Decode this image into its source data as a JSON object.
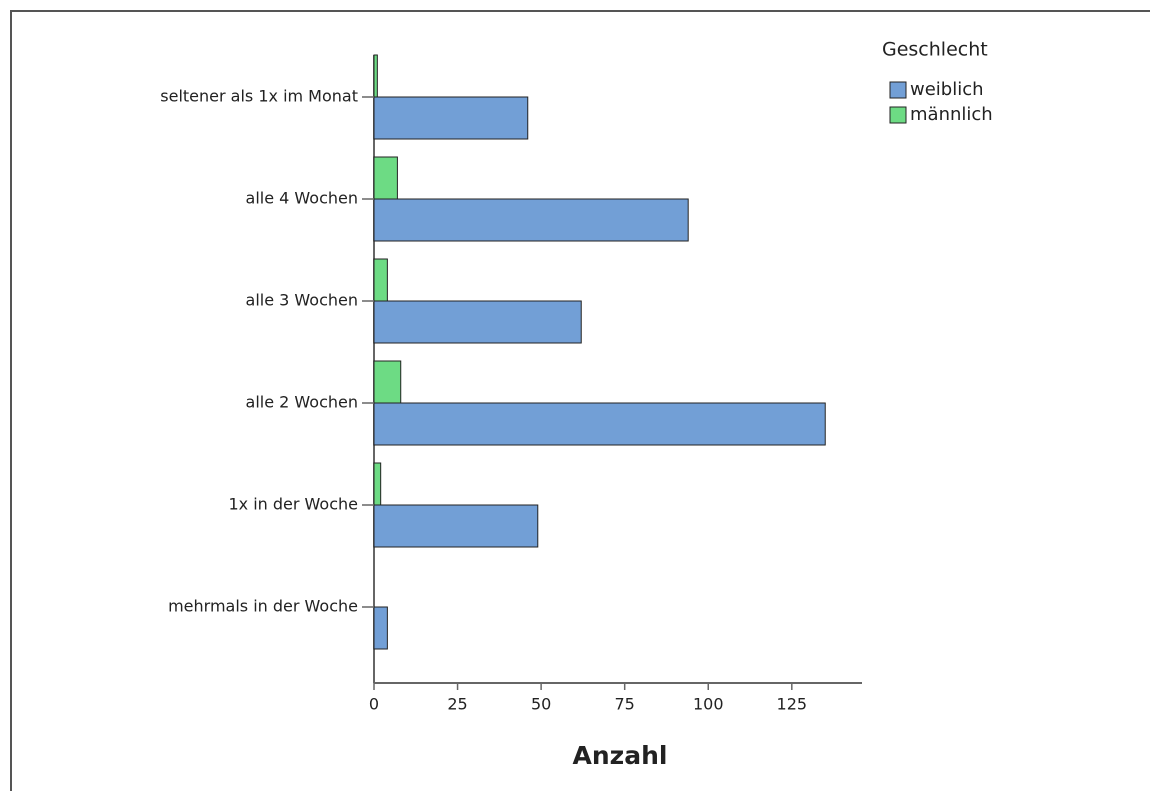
{
  "chart_data": {
    "type": "bar",
    "orientation": "horizontal",
    "categories": [
      "seltener als 1x im Monat",
      "alle 4 Wochen",
      "alle 3 Wochen",
      "alle 2 Wochen",
      "1x in der Woche",
      "mehrmals in der Woche"
    ],
    "legend_title": "Geschlecht",
    "legend": "top-right",
    "series": [
      {
        "name": "weiblich",
        "color": "#729fd6",
        "values": [
          46,
          94,
          62,
          135,
          49,
          4
        ]
      },
      {
        "name": "männlich",
        "color": "#6ddb84",
        "values": [
          1,
          7,
          4,
          8,
          2,
          0
        ]
      }
    ],
    "x_label": "Anzahl",
    "xlim": [
      0,
      146
    ],
    "xticks": [
      0,
      25,
      50,
      75,
      100,
      125
    ],
    "grid": false
  }
}
